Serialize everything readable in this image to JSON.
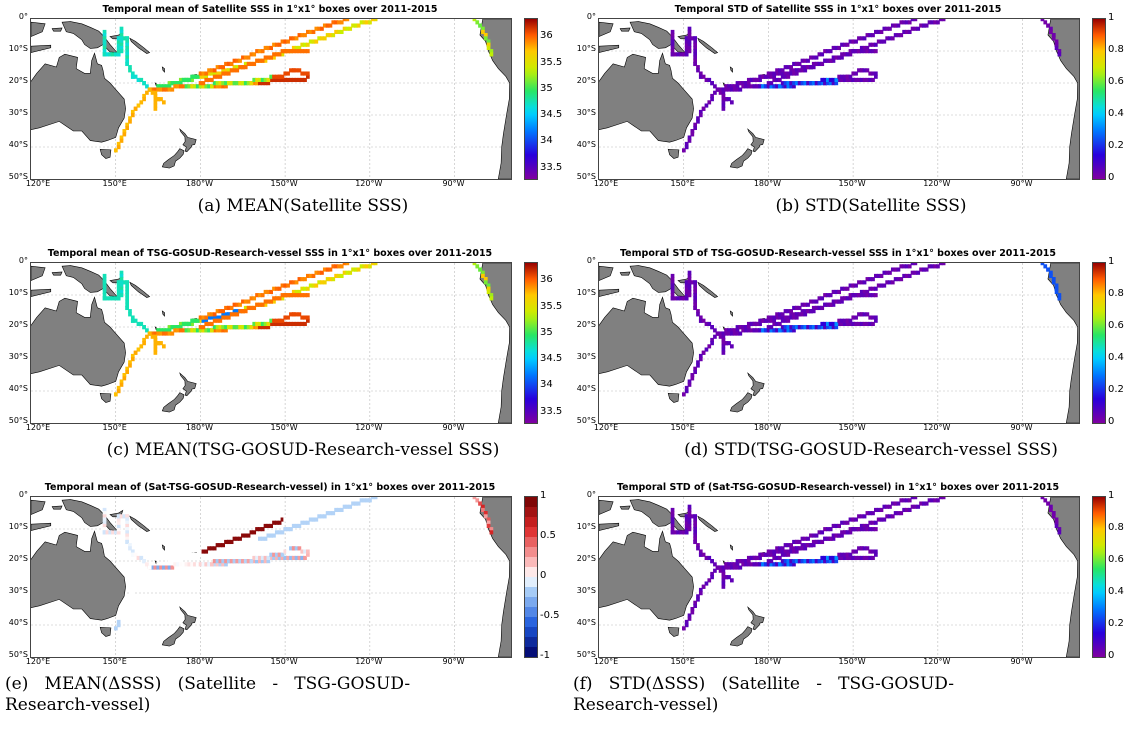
{
  "panels": [
    {
      "id": "a",
      "title": "Temporal mean of Satellite SSS in 1°x1° boxes over 2011-2015",
      "caption": "(a) MEAN(Satellite SSS)",
      "colormap": "jet",
      "colorbar_ticks": [
        "36",
        "35.5",
        "35",
        "34.5",
        "34",
        "33.5"
      ]
    },
    {
      "id": "b",
      "title": "Temporal STD of Satellite SSS in 1°x1° boxes over 2011-2015",
      "caption": "(b) STD(Satellite SSS)",
      "colormap": "jet",
      "colorbar_ticks": [
        "1",
        "0.8",
        "0.6",
        "0.4",
        "0.2",
        "0"
      ]
    },
    {
      "id": "c",
      "title": "Temporal mean of TSG-GOSUD-Research-vessel SSS in 1°x1° boxes over 2011-2015",
      "caption": "(c) MEAN(TSG-GOSUD-Research-vessel SSS)",
      "colormap": "jet",
      "colorbar_ticks": [
        "36",
        "35.5",
        "35",
        "34.5",
        "34",
        "33.5"
      ]
    },
    {
      "id": "d",
      "title": "Temporal STD of TSG-GOSUD-Research-vessel SSS in 1°x1° boxes over 2011-2015",
      "caption": "(d) STD(TSG-GOSUD-Research-vessel SSS)",
      "colormap": "jet",
      "colorbar_ticks": [
        "1",
        "0.8",
        "0.6",
        "0.4",
        "0.2",
        "0"
      ]
    },
    {
      "id": "e",
      "title": "Temporal mean of (Sat-TSG-GOSUD-Research-vessel) in 1°x1° boxes over 2011-2015",
      "caption_line1": "(e)   MEAN(ΔSSS)   (Satellite   -   TSG-GOSUD-",
      "caption_line2": "Research-vessel)",
      "colormap": "diverging",
      "colorbar_ticks": [
        "1",
        "0.5",
        "0",
        "-0.5",
        "-1"
      ]
    },
    {
      "id": "f",
      "title": "Temporal STD of (Sat-TSG-GOSUD-Research-vessel) in 1°x1° boxes over 2011-2015",
      "caption_line1": "(f)   STD(ΔSSS)   (Satellite   -   TSG-GOSUD-",
      "caption_line2": "Research-vessel)",
      "colormap": "jet",
      "colorbar_ticks": [
        "1",
        "0.8",
        "0.6",
        "0.4",
        "0.2",
        "0"
      ]
    }
  ],
  "lat_labels": [
    "0°",
    "10°S",
    "20°S",
    "30°S",
    "40°S",
    "50°S"
  ],
  "lon_labels": [
    "120°E",
    "150°E",
    "180°W",
    "150°W",
    "120°W",
    "90°W"
  ],
  "colors": {
    "land": "#808080",
    "grid": "#bbbbbb",
    "std_track": "#7a0099"
  }
}
